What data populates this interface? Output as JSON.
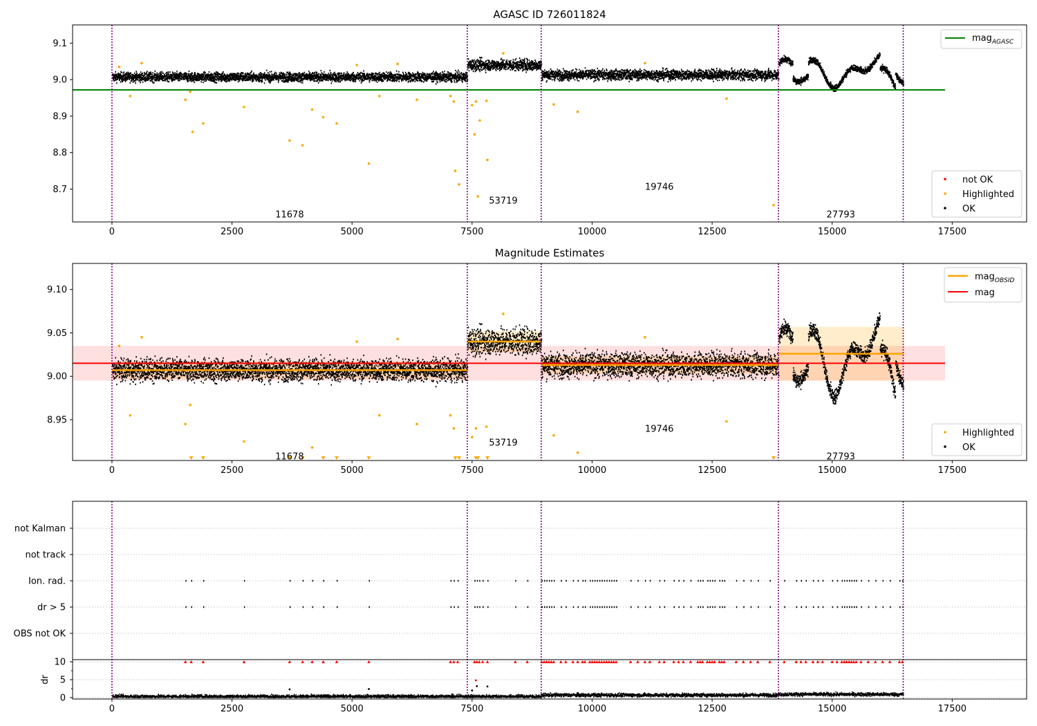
{
  "chart_data": [
    {
      "type": "scatter",
      "title": "AGASC ID 726011824",
      "xlabel": "",
      "ylabel": "",
      "xlim": [
        -820,
        19050
      ],
      "ylim": [
        8.61,
        9.15
      ],
      "xticks": [
        0,
        2500,
        5000,
        7500,
        10000,
        12500,
        15000,
        17500
      ],
      "yticks": [
        8.7,
        8.8,
        8.9,
        9.0,
        9.1
      ],
      "ytick_labels": [
        "8.7",
        "8.8",
        "8.9",
        "9.0",
        "9.1"
      ],
      "grid": false,
      "obs_boundaries": [
        0,
        7400,
        8940,
        13880,
        16480
      ],
      "obs_labels": [
        {
          "text": "11678",
          "x": 3700,
          "y": 8.632
        },
        {
          "text": "53719",
          "x": 8150,
          "y": 8.67
        },
        {
          "text": "19746",
          "x": 11400,
          "y": 8.708
        },
        {
          "text": "27793",
          "x": 15180,
          "y": 8.632
        }
      ],
      "lines": [
        {
          "name": "mag_AGASC",
          "name_main": "mag",
          "name_sub": "AGASC",
          "color": "#008000",
          "y": 8.972,
          "x_range": [
            -820,
            17350
          ]
        }
      ],
      "segments": [
        {
          "x0": 0,
          "x1": 7400,
          "mean": 9.007,
          "noise": 0.009
        },
        {
          "x0": 7400,
          "x1": 8940,
          "mean": 9.04,
          "noise": 0.011
        },
        {
          "x0": 8940,
          "x1": 13880,
          "mean": 9.013,
          "noise": 0.01
        },
        {
          "x0": 13880,
          "x1": 16480,
          "mean": 9.025,
          "noise": 0.03,
          "variable": true
        }
      ],
      "highlighted": [
        [
          150,
          9.035
        ],
        [
          620,
          9.045
        ],
        [
          1530,
          8.945
        ],
        [
          1630,
          8.967
        ],
        [
          1680,
          8.857
        ],
        [
          1900,
          8.88
        ],
        [
          2750,
          8.925
        ],
        [
          3700,
          8.833
        ],
        [
          3970,
          8.82
        ],
        [
          4170,
          8.918
        ],
        [
          4400,
          8.897
        ],
        [
          4680,
          8.88
        ],
        [
          5350,
          8.77
        ],
        [
          5570,
          8.955
        ],
        [
          6350,
          8.945
        ],
        [
          7050,
          8.955
        ],
        [
          7120,
          8.94
        ],
        [
          7150,
          8.75
        ],
        [
          7230,
          8.713
        ],
        [
          7500,
          8.93
        ],
        [
          7550,
          8.85
        ],
        [
          7580,
          8.94
        ],
        [
          7620,
          8.68
        ],
        [
          7660,
          8.888
        ],
        [
          7800,
          8.942
        ],
        [
          7820,
          8.78
        ],
        [
          9200,
          8.932
        ],
        [
          9700,
          8.912
        ],
        [
          12800,
          8.948
        ],
        [
          13780,
          8.656
        ],
        [
          380,
          8.955
        ],
        [
          5100,
          9.04
        ],
        [
          5950,
          9.043
        ],
        [
          8150,
          9.072
        ],
        [
          11100,
          9.045
        ]
      ],
      "legend": [
        "not OK",
        "Highlighted",
        "OK"
      ],
      "legend_position": "lower right",
      "colors": {
        "ok": "#000000",
        "highlighted": "#ffa500",
        "not_ok": "#ff0000",
        "obs_boundary": "#800080"
      }
    },
    {
      "type": "scatter",
      "title": "Magnitude Estimates",
      "xlabel": "",
      "ylabel": "",
      "xlim": [
        -820,
        19050
      ],
      "ylim": [
        8.903,
        9.13
      ],
      "xticks": [
        0,
        2500,
        5000,
        7500,
        10000,
        12500,
        15000,
        17500
      ],
      "yticks": [
        8.95,
        9.0,
        9.05,
        9.1
      ],
      "ytick_labels": [
        "8.95",
        "9.00",
        "9.05",
        "9.10"
      ],
      "grid": false,
      "obs_boundaries": [
        0,
        7400,
        8940,
        13880,
        16480
      ],
      "obs_labels": [
        {
          "text": "11678",
          "x": 3700,
          "y": 8.908
        },
        {
          "text": "53719",
          "x": 8150,
          "y": 8.924
        },
        {
          "text": "19746",
          "x": 11400,
          "y": 8.94
        },
        {
          "text": "27793",
          "x": 15180,
          "y": 8.908
        }
      ],
      "mag": {
        "name": "mag",
        "y": 9.015,
        "band": [
          8.995,
          9.035
        ],
        "x_range": [
          -820,
          17350
        ],
        "color": "#ff0000"
      },
      "mag_obsid": {
        "name": "mag_OBSID",
        "name_main": "mag",
        "name_sub": "OBSID",
        "color": "#ffa500",
        "values": [
          {
            "x0": 0,
            "x1": 7400,
            "y": 9.007,
            "band": [
              8.997,
              9.017
            ]
          },
          {
            "x0": 7400,
            "x1": 8940,
            "y": 9.04,
            "band": [
              9.028,
              9.052
            ]
          },
          {
            "x0": 8940,
            "x1": 13880,
            "y": 9.013,
            "band": [
              9.003,
              9.023
            ]
          },
          {
            "x0": 13880,
            "x1": 16480,
            "y": 9.026,
            "band": [
              8.995,
              9.057
            ]
          }
        ]
      },
      "below_range_markers_x": [
        1650,
        1900,
        3700,
        3970,
        4400,
        4680,
        5350,
        7150,
        7230,
        7580,
        7620,
        7820,
        13780
      ],
      "legend": [
        "Highlighted",
        "OK"
      ],
      "legend_position": "lower right"
    },
    {
      "type": "scatter",
      "title": "",
      "xlabel": "",
      "ylabel": "dr",
      "xlim": [
        -820,
        19050
      ],
      "xticks": [
        0,
        2500,
        5000,
        7500,
        10000,
        12500,
        15000,
        17500
      ],
      "flag_rows": [
        "not Kalman",
        "not track",
        "Ion. rad.",
        "dr > 5",
        "OBS not OK"
      ],
      "flag_x": [
        1530,
        1650,
        1900,
        2750,
        3700,
        3970,
        4170,
        4400,
        4680,
        5350,
        7050,
        7120,
        7200,
        7550,
        7600,
        7650,
        7720,
        7820,
        8400,
        8650,
        8950,
        9000,
        9050,
        9100,
        9150,
        9200,
        9350,
        9450,
        9600,
        9700,
        9800,
        9850,
        9950,
        10000,
        10050,
        10100,
        10150,
        10200,
        10250,
        10300,
        10350,
        10400,
        10450,
        10500,
        10800,
        10950,
        11100,
        11200,
        11400,
        11500,
        11700,
        11800,
        11900,
        12050,
        12200,
        12250,
        12300,
        12400,
        12450,
        12500,
        12550,
        12650,
        12700,
        12750,
        13000,
        13150,
        13300,
        13450,
        13700,
        14000,
        14250,
        14350,
        14450,
        14600,
        14700,
        14800,
        15000,
        15100,
        15200,
        15250,
        15300,
        15350,
        15400,
        15450,
        15500,
        15600,
        15750,
        15900,
        16050,
        16200,
        16400,
        16460
      ],
      "dr_yticks": [
        0,
        5,
        10
      ],
      "dr_ylim": [
        -0.4,
        10.6
      ],
      "dr_spikes": [
        [
          3700,
          2.3
        ],
        [
          5350,
          2.4
        ],
        [
          7580,
          4.8
        ],
        [
          7600,
          3.2
        ],
        [
          7820,
          3.1
        ],
        [
          7500,
          2.0
        ]
      ],
      "colors": {
        "flag": "#000000",
        "not_ok": "#ff0000"
      }
    }
  ]
}
